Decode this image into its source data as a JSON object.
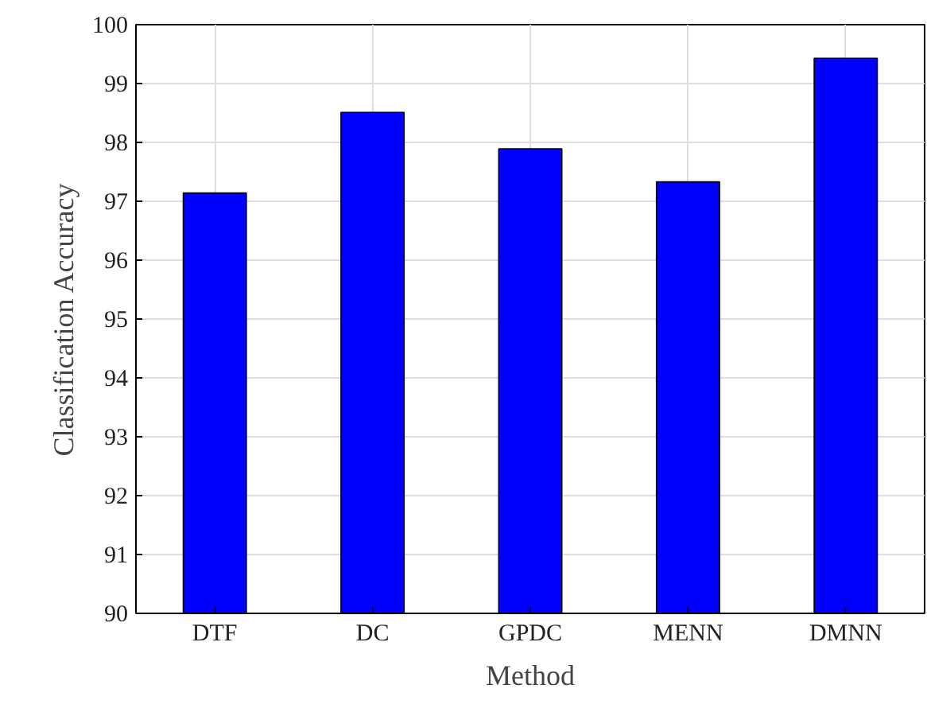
{
  "chart_data": {
    "type": "bar",
    "xlabel": "Method",
    "ylabel": "Classification Accuracy",
    "categories": [
      "DTF",
      "DC",
      "GPDC",
      "MENN",
      "DMNN"
    ],
    "values": [
      97.14,
      98.51,
      97.89,
      97.33,
      99.43
    ],
    "color": "#0000ff",
    "ylim": [
      90,
      100
    ],
    "yticks": [
      90,
      91,
      92,
      93,
      94,
      95,
      96,
      97,
      98,
      99,
      100
    ],
    "grid": true
  }
}
